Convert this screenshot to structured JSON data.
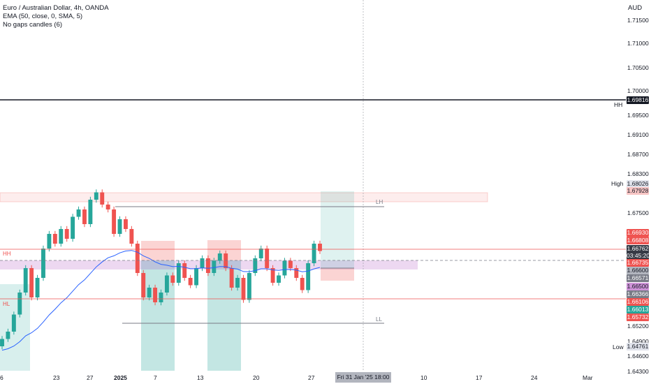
{
  "legend": {
    "symbol": "Euro / Australian Dollar, 4h, OANDA",
    "ema": "EMA (50, close, 0, SMA, 5)",
    "indicator": "No gaps candles (6)"
  },
  "axis": {
    "currency": "AUD",
    "y_labels": [
      "1.71500",
      "1.71000",
      "1.70500",
      "1.70000",
      "1.69500",
      "1.69100",
      "1.68700",
      "1.68300",
      "1.67500",
      "1.65200",
      "1.64900",
      "1.64600",
      "1.64300"
    ],
    "x_labels": [
      "6",
      "23",
      "27",
      "2025",
      "7",
      "13",
      "20",
      "27",
      "10",
      "17",
      "24",
      "Mar"
    ],
    "crosshair_time": "Fri 31 Jan '25   18:00"
  },
  "price_tags": [
    {
      "text": "1.69816",
      "kind": "black"
    },
    {
      "text": "1.68026",
      "kind": "plain"
    },
    {
      "text": "1.67928",
      "kind": "rose"
    },
    {
      "text": "1.66930",
      "kind": "red"
    },
    {
      "text": "1.66808",
      "kind": "red"
    },
    {
      "text": "1.66762",
      "kind": "dark"
    },
    {
      "text": "03:45:20",
      "kind": "dark"
    },
    {
      "text": "1.66735",
      "kind": "red"
    },
    {
      "text": "1.66600",
      "kind": "gray"
    },
    {
      "text": "1.66571",
      "kind": "darkgray"
    },
    {
      "text": "1.66500",
      "kind": "violet"
    },
    {
      "text": "1.66366",
      "kind": "darkgray"
    },
    {
      "text": "1.66106",
      "kind": "red"
    },
    {
      "text": "1.66013",
      "kind": "green"
    },
    {
      "text": "1.65732",
      "kind": "red"
    },
    {
      "text": "1.64761",
      "kind": "plain"
    }
  ],
  "side_labels": {
    "hh": "HH",
    "high": "High",
    "low": "Low"
  },
  "zone_labels": {
    "lh": "LH",
    "ll": "LL",
    "hh": "HH",
    "hl": "HL"
  },
  "colors": {
    "up": "#26a69a",
    "down": "#ef5350",
    "ema": "#2962ff",
    "violet": "#9c27b0",
    "demand": "#26a69a",
    "supply": "#ef5350"
  },
  "chart_data": {
    "type": "candlestick",
    "symbol": "EURAUD",
    "timeframe": "4h",
    "ylim": [
      1.643,
      1.716
    ],
    "last_price": 1.66762,
    "horizontal_levels": [
      1.69816,
      1.6673,
      1.661,
      1.6752
    ],
    "closes": [
      1.6495,
      1.651,
      1.6545,
      1.659,
      1.664,
      1.658,
      1.662,
      1.668,
      1.671,
      1.669,
      1.672,
      1.67,
      1.6745,
      1.676,
      1.673,
      1.678,
      1.6795,
      1.677,
      1.676,
      1.671,
      1.674,
      1.672,
      1.669,
      1.663,
      1.658,
      1.66,
      1.657,
      1.659,
      1.6625,
      1.661,
      1.665,
      1.662,
      1.6605,
      1.664,
      1.666,
      1.663,
      1.6655,
      1.667,
      1.664,
      1.66,
      1.662,
      1.6575,
      1.663,
      1.666,
      1.668,
      1.664,
      1.661,
      1.6625,
      1.6655,
      1.664,
      1.662,
      1.6595,
      1.665,
      1.669,
      1.6675
    ]
  }
}
